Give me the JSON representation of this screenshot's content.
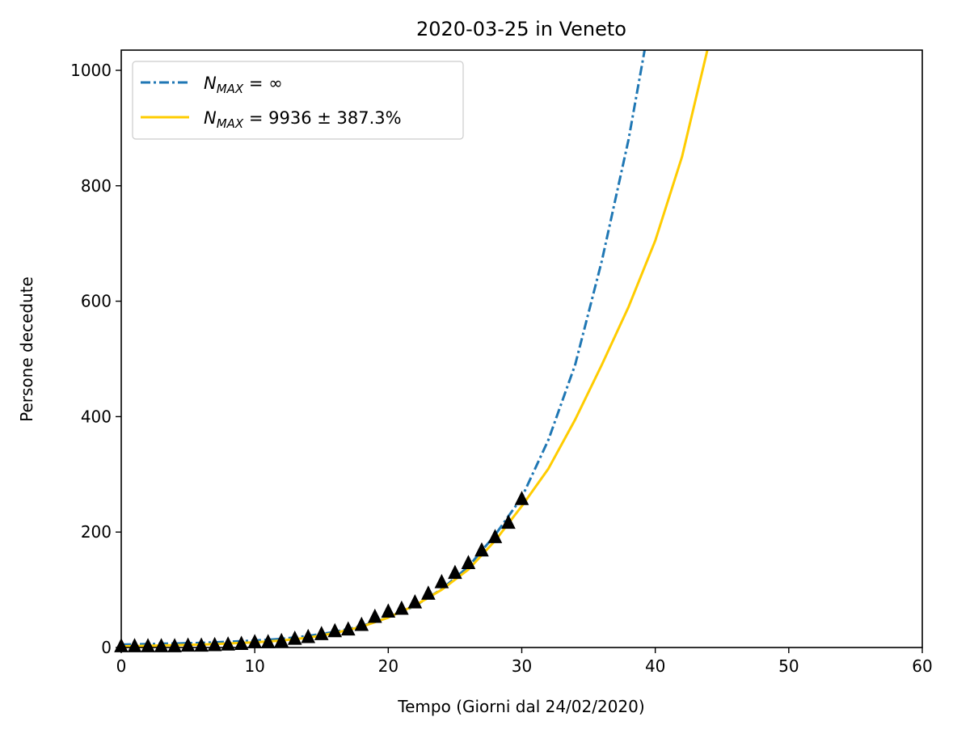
{
  "chart_data": {
    "type": "line",
    "title": "2020-03-25 in Veneto",
    "xlabel": "Tempo (Giorni dal 24/02/2020)",
    "ylabel": "Persone decedute",
    "xlim": [
      0,
      60
    ],
    "ylim": [
      0,
      1035
    ],
    "xticks": [
      0,
      10,
      20,
      30,
      40,
      50,
      60
    ],
    "yticks": [
      0,
      200,
      400,
      600,
      800,
      1000
    ],
    "grid": false,
    "legend_position": "top-left",
    "series": [
      {
        "name": "N_MAX = ∞",
        "style": "dashdot",
        "color": "#1f77b4",
        "x": [
          0,
          2,
          4,
          6,
          8,
          10,
          12,
          14,
          16,
          18,
          20,
          22,
          24,
          26,
          28,
          30,
          32,
          34,
          36,
          38,
          39.2
        ],
        "y": [
          5,
          6,
          7,
          8,
          10,
          12,
          15,
          20,
          27,
          37,
          52,
          72,
          101,
          140,
          195,
          260,
          360,
          490,
          670,
          880,
          1035
        ]
      },
      {
        "name": "N_MAX = 9936 ± 387.3%",
        "style": "solid",
        "color": "#ffcc00",
        "x": [
          0,
          2,
          4,
          6,
          8,
          10,
          12,
          14,
          16,
          18,
          20,
          22,
          24,
          26,
          28,
          30,
          32,
          34,
          36,
          38,
          40,
          42,
          43.9
        ],
        "y": [
          2,
          3,
          4,
          5,
          7,
          9,
          12,
          17,
          25,
          36,
          52,
          73,
          100,
          135,
          185,
          245,
          310,
          395,
          490,
          590,
          705,
          850,
          1035
        ]
      },
      {
        "name": "",
        "style": "markers",
        "marker": "triangle",
        "color": "#000000",
        "x": [
          0,
          1,
          2,
          3,
          4,
          5,
          6,
          7,
          8,
          9,
          10,
          11,
          12,
          13,
          14,
          15,
          16,
          17,
          18,
          19,
          20,
          21,
          22,
          23,
          24,
          25,
          26,
          27,
          28,
          29,
          30
        ],
        "y": [
          1,
          1,
          1,
          1,
          1,
          2,
          2,
          3,
          4,
          5,
          8,
          8,
          10,
          14,
          17,
          22,
          27,
          30,
          38,
          52,
          61,
          66,
          77,
          92,
          112,
          128,
          145,
          167,
          190,
          215,
          256
        ]
      }
    ],
    "legend": [
      {
        "label_base": "N",
        "label_sub": "MAX",
        "label_rest": " = ∞"
      },
      {
        "label_base": "N",
        "label_sub": "MAX",
        "label_rest": " = 9936 ± 387.3%"
      }
    ]
  }
}
